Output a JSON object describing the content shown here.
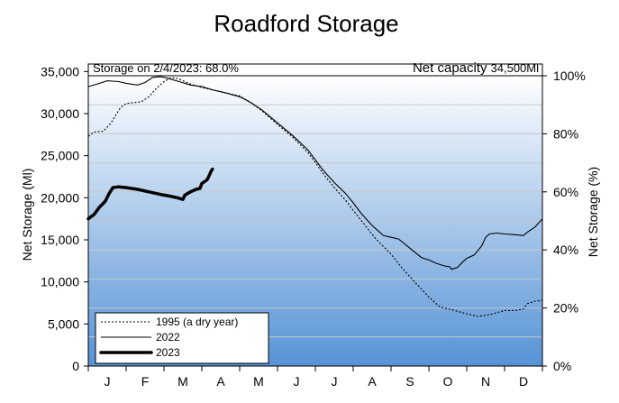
{
  "chart_data": {
    "type": "line",
    "title": "Roadford Storage",
    "ylabel": "Net Storage (Ml)",
    "ylabel_right": "Net Storage (%)",
    "ylim": [
      0,
      35000
    ],
    "ylim_right": [
      0,
      100
    ],
    "yticks": [
      "0",
      "5,000",
      "10,000",
      "15,000",
      "20,000",
      "25,000",
      "30,000",
      "35,000"
    ],
    "yticks_right": [
      "0%",
      "20%",
      "40%",
      "60%",
      "80%",
      "100%"
    ],
    "xticks": [
      "J",
      "F",
      "M",
      "A",
      "M",
      "J",
      "J",
      "A",
      "S",
      "O",
      "N",
      "D"
    ],
    "annotation_left": "Storage on 2/4/2023: 68.0%",
    "annotation_right_label": "Net capacity",
    "annotation_right_value": "34,500Ml",
    "net_capacity": 34500,
    "grid": true,
    "legend_position": "bottom-left",
    "x_unit": "month (0 = 1 Jan, 12 = 31 Dec)",
    "series": [
      {
        "name": "1995 (a dry year)",
        "style": "dotted",
        "points": [
          [
            0,
            27300
          ],
          [
            0.15,
            27800
          ],
          [
            0.4,
            27900
          ],
          [
            0.6,
            28900
          ],
          [
            0.85,
            30700
          ],
          [
            1.0,
            31200
          ],
          [
            1.4,
            31400
          ],
          [
            1.6,
            32000
          ],
          [
            1.8,
            33000
          ],
          [
            2.0,
            33800
          ],
          [
            2.2,
            34300
          ],
          [
            2.4,
            34100
          ],
          [
            2.7,
            33500
          ],
          [
            3.0,
            33100
          ],
          [
            3.5,
            32600
          ],
          [
            4.0,
            32100
          ],
          [
            4.3,
            31300
          ],
          [
            4.6,
            30300
          ],
          [
            5.0,
            28700
          ],
          [
            5.4,
            27200
          ],
          [
            5.8,
            25400
          ],
          [
            6.0,
            24200
          ],
          [
            6.2,
            22900
          ],
          [
            6.5,
            21200
          ],
          [
            6.8,
            19700
          ],
          [
            7.0,
            18500
          ],
          [
            7.3,
            16800
          ],
          [
            7.6,
            15100
          ],
          [
            8.0,
            13300
          ],
          [
            8.3,
            11600
          ],
          [
            8.6,
            10100
          ],
          [
            9.0,
            8200
          ],
          [
            9.3,
            7000
          ],
          [
            9.6,
            6700
          ],
          [
            10.0,
            6200
          ],
          [
            10.3,
            5900
          ],
          [
            10.6,
            6100
          ],
          [
            11.0,
            6600
          ],
          [
            11.3,
            6600
          ],
          [
            11.5,
            6800
          ],
          [
            11.6,
            7400
          ],
          [
            11.8,
            7700
          ],
          [
            12.0,
            7800
          ]
        ]
      },
      {
        "name": "2022",
        "style": "solid",
        "points": [
          [
            0,
            33200
          ],
          [
            0.3,
            33600
          ],
          [
            0.5,
            33900
          ],
          [
            0.8,
            33800
          ],
          [
            1.0,
            33600
          ],
          [
            1.3,
            33400
          ],
          [
            1.5,
            33700
          ],
          [
            1.7,
            34300
          ],
          [
            1.9,
            34400
          ],
          [
            2.1,
            34200
          ],
          [
            2.4,
            33800
          ],
          [
            2.7,
            33400
          ],
          [
            3.0,
            33200
          ],
          [
            3.3,
            32800
          ],
          [
            3.6,
            32500
          ],
          [
            4.0,
            32000
          ],
          [
            4.3,
            31300
          ],
          [
            4.6,
            30400
          ],
          [
            5.0,
            28900
          ],
          [
            5.4,
            27400
          ],
          [
            5.8,
            25700
          ],
          [
            6.0,
            24500
          ],
          [
            6.2,
            23300
          ],
          [
            6.5,
            21800
          ],
          [
            6.8,
            20500
          ],
          [
            7.0,
            19400
          ],
          [
            7.2,
            18200
          ],
          [
            7.5,
            16700
          ],
          [
            7.8,
            15500
          ],
          [
            8.0,
            15300
          ],
          [
            8.2,
            15100
          ],
          [
            8.5,
            14000
          ],
          [
            8.8,
            12900
          ],
          [
            9.0,
            12600
          ],
          [
            9.2,
            12200
          ],
          [
            9.4,
            11900
          ],
          [
            9.55,
            11800
          ],
          [
            9.6,
            11500
          ],
          [
            9.75,
            11700
          ],
          [
            9.9,
            12400
          ],
          [
            10.0,
            12800
          ],
          [
            10.2,
            13200
          ],
          [
            10.4,
            14300
          ],
          [
            10.5,
            15300
          ],
          [
            10.6,
            15700
          ],
          [
            10.8,
            15800
          ],
          [
            11.0,
            15700
          ],
          [
            11.3,
            15600
          ],
          [
            11.5,
            15500
          ],
          [
            11.6,
            15900
          ],
          [
            11.8,
            16500
          ],
          [
            12.0,
            17500
          ]
        ]
      },
      {
        "name": "2023",
        "style": "bold",
        "points": [
          [
            0,
            17500
          ],
          [
            0.15,
            18000
          ],
          [
            0.3,
            18900
          ],
          [
            0.45,
            19600
          ],
          [
            0.55,
            20500
          ],
          [
            0.65,
            21200
          ],
          [
            0.8,
            21300
          ],
          [
            1.0,
            21200
          ],
          [
            1.3,
            21000
          ],
          [
            1.6,
            20700
          ],
          [
            1.9,
            20400
          ],
          [
            2.15,
            20200
          ],
          [
            2.35,
            20000
          ],
          [
            2.5,
            19800
          ],
          [
            2.55,
            20300
          ],
          [
            2.7,
            20700
          ],
          [
            2.85,
            21000
          ],
          [
            2.95,
            21100
          ],
          [
            3.0,
            21700
          ],
          [
            3.1,
            22000
          ],
          [
            3.15,
            22200
          ],
          [
            3.2,
            22700
          ],
          [
            3.25,
            23200
          ],
          [
            3.28,
            23400
          ]
        ]
      }
    ]
  }
}
